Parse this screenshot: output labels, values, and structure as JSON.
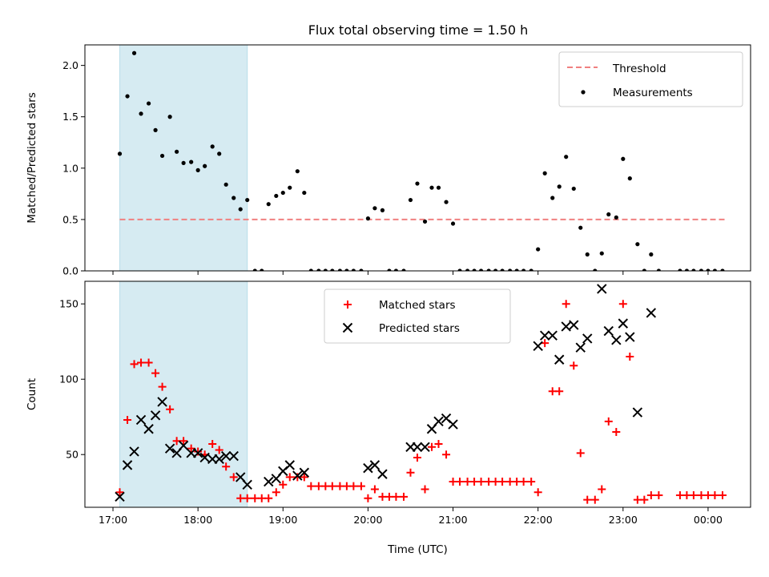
{
  "figure": {
    "title": "Flux total observing time = 1.50 h",
    "colors": {
      "threshold": "#f08080",
      "highlight": "#add8e6",
      "matched": "#ff0000",
      "predicted": "#000000",
      "measurement": "#000000"
    }
  },
  "chart_data": [
    {
      "type": "scatter",
      "title": "Flux total observing time = 1.50 h",
      "xlabel": "",
      "ylabel": "Matched/Predicted stars",
      "x_unit": "hours since 17:00 UTC",
      "xlim": [
        -0.33,
        7.5
      ],
      "ylim": [
        0,
        2.2
      ],
      "yticks": [
        0.0,
        0.5,
        1.0,
        1.5,
        2.0
      ],
      "ytick_labels": [
        "0.0",
        "0.5",
        "1.0",
        "1.5",
        "2.0"
      ],
      "highlight_span": [
        0.08,
        1.58
      ],
      "threshold": {
        "value": 0.5,
        "x_range": [
          0.08,
          7.2
        ],
        "label": "Threshold"
      },
      "legend": {
        "position": "upper right",
        "entries": [
          "Threshold",
          "Measurements"
        ]
      },
      "series": [
        {
          "name": "Measurements",
          "points": [
            [
              0.08,
              1.14
            ],
            [
              0.17,
              1.7
            ],
            [
              0.25,
              2.12
            ],
            [
              0.33,
              1.53
            ],
            [
              0.42,
              1.63
            ],
            [
              0.5,
              1.37
            ],
            [
              0.58,
              1.12
            ],
            [
              0.67,
              1.5
            ],
            [
              0.75,
              1.16
            ],
            [
              0.83,
              1.05
            ],
            [
              0.92,
              1.06
            ],
            [
              1.0,
              0.98
            ],
            [
              1.08,
              1.02
            ],
            [
              1.17,
              1.21
            ],
            [
              1.25,
              1.14
            ],
            [
              1.33,
              0.84
            ],
            [
              1.42,
              0.71
            ],
            [
              1.5,
              0.6
            ],
            [
              1.58,
              0.69
            ],
            [
              1.67,
              0
            ],
            [
              1.75,
              0
            ],
            [
              1.83,
              0.65
            ],
            [
              1.92,
              0.73
            ],
            [
              2.0,
              0.76
            ],
            [
              2.08,
              0.81
            ],
            [
              2.17,
              0.97
            ],
            [
              2.25,
              0.76
            ],
            [
              2.33,
              0
            ],
            [
              2.42,
              0
            ],
            [
              2.5,
              0
            ],
            [
              2.58,
              0
            ],
            [
              2.67,
              0
            ],
            [
              2.75,
              0
            ],
            [
              2.83,
              0
            ],
            [
              2.92,
              0
            ],
            [
              3.0,
              0.51
            ],
            [
              3.08,
              0.61
            ],
            [
              3.17,
              0.59
            ],
            [
              3.25,
              0
            ],
            [
              3.33,
              0
            ],
            [
              3.42,
              0
            ],
            [
              3.5,
              0.69
            ],
            [
              3.58,
              0.85
            ],
            [
              3.67,
              0.48
            ],
            [
              3.75,
              0.81
            ],
            [
              3.83,
              0.81
            ],
            [
              3.92,
              0.67
            ],
            [
              4.0,
              0.46
            ],
            [
              4.08,
              0
            ],
            [
              4.17,
              0
            ],
            [
              4.25,
              0
            ],
            [
              4.33,
              0
            ],
            [
              4.42,
              0
            ],
            [
              4.5,
              0
            ],
            [
              4.58,
              0
            ],
            [
              4.67,
              0
            ],
            [
              4.75,
              0
            ],
            [
              4.83,
              0
            ],
            [
              4.92,
              0
            ],
            [
              5.0,
              0.21
            ],
            [
              5.08,
              0.95
            ],
            [
              5.17,
              0.71
            ],
            [
              5.25,
              0.82
            ],
            [
              5.33,
              1.11
            ],
            [
              5.42,
              0.8
            ],
            [
              5.5,
              0.42
            ],
            [
              5.58,
              0.16
            ],
            [
              5.67,
              0
            ],
            [
              5.75,
              0.17
            ],
            [
              5.83,
              0.55
            ],
            [
              5.92,
              0.52
            ],
            [
              6.0,
              1.09
            ],
            [
              6.08,
              0.9
            ],
            [
              6.17,
              0.26
            ],
            [
              6.25,
              0
            ],
            [
              6.33,
              0.16
            ],
            [
              6.42,
              0
            ],
            [
              6.67,
              0
            ],
            [
              6.75,
              0
            ],
            [
              6.83,
              0
            ],
            [
              6.92,
              0
            ],
            [
              7.0,
              0
            ],
            [
              7.08,
              0
            ],
            [
              7.17,
              0
            ]
          ]
        }
      ]
    },
    {
      "type": "scatter",
      "title": "",
      "xlabel": "Time (UTC)",
      "ylabel": "Count",
      "x_unit": "hours since 17:00 UTC",
      "xlim": [
        -0.33,
        7.5
      ],
      "ylim": [
        15,
        165
      ],
      "yticks": [
        50,
        100,
        150
      ],
      "ytick_labels": [
        "50",
        "100",
        "150"
      ],
      "xticks": [
        0,
        1,
        2,
        3,
        4,
        5,
        6,
        7
      ],
      "xtick_labels": [
        "17:00",
        "18:00",
        "19:00",
        "20:00",
        "21:00",
        "22:00",
        "23:00",
        "00:00"
      ],
      "highlight_span": [
        0.08,
        1.58
      ],
      "legend": {
        "position": "upper center",
        "entries": [
          "Matched stars",
          "Predicted stars"
        ]
      },
      "series": [
        {
          "name": "Matched stars",
          "marker": "+",
          "points": [
            [
              0.08,
              25
            ],
            [
              0.17,
              73
            ],
            [
              0.25,
              110
            ],
            [
              0.33,
              111
            ],
            [
              0.42,
              111
            ],
            [
              0.5,
              104
            ],
            [
              0.58,
              95
            ],
            [
              0.67,
              80
            ],
            [
              0.75,
              59
            ],
            [
              0.83,
              59
            ],
            [
              0.92,
              54
            ],
            [
              1.0,
              52
            ],
            [
              1.08,
              50
            ],
            [
              1.17,
              57
            ],
            [
              1.25,
              53
            ],
            [
              1.33,
              42
            ],
            [
              1.42,
              35
            ],
            [
              1.5,
              21
            ],
            [
              1.58,
              21
            ],
            [
              1.67,
              21
            ],
            [
              1.75,
              21
            ],
            [
              1.83,
              21
            ],
            [
              1.92,
              25
            ],
            [
              2.0,
              30
            ],
            [
              2.08,
              35
            ],
            [
              2.17,
              35
            ],
            [
              2.25,
              35
            ],
            [
              2.33,
              29
            ],
            [
              2.42,
              29
            ],
            [
              2.5,
              29
            ],
            [
              2.58,
              29
            ],
            [
              2.67,
              29
            ],
            [
              2.75,
              29
            ],
            [
              2.83,
              29
            ],
            [
              2.92,
              29
            ],
            [
              3.0,
              21
            ],
            [
              3.08,
              27
            ],
            [
              3.17,
              22
            ],
            [
              3.25,
              22
            ],
            [
              3.33,
              22
            ],
            [
              3.42,
              22
            ],
            [
              3.5,
              38
            ],
            [
              3.58,
              48
            ],
            [
              3.67,
              27
            ],
            [
              3.75,
              55
            ],
            [
              3.83,
              57
            ],
            [
              3.92,
              50
            ],
            [
              4.0,
              32
            ],
            [
              4.08,
              32
            ],
            [
              4.17,
              32
            ],
            [
              4.25,
              32
            ],
            [
              4.33,
              32
            ],
            [
              4.42,
              32
            ],
            [
              4.5,
              32
            ],
            [
              4.58,
              32
            ],
            [
              4.67,
              32
            ],
            [
              4.75,
              32
            ],
            [
              4.83,
              32
            ],
            [
              4.92,
              32
            ],
            [
              5.0,
              25
            ],
            [
              5.08,
              124
            ],
            [
              5.17,
              92
            ],
            [
              5.25,
              92
            ],
            [
              5.33,
              150
            ],
            [
              5.42,
              109
            ],
            [
              5.5,
              51
            ],
            [
              5.58,
              20
            ],
            [
              5.67,
              20
            ],
            [
              5.75,
              27
            ],
            [
              5.83,
              72
            ],
            [
              5.92,
              65
            ],
            [
              6.0,
              150
            ],
            [
              6.08,
              115
            ],
            [
              6.17,
              20
            ],
            [
              6.25,
              20
            ],
            [
              6.33,
              23
            ],
            [
              6.42,
              23
            ],
            [
              6.67,
              23
            ],
            [
              6.75,
              23
            ],
            [
              6.83,
              23
            ],
            [
              6.92,
              23
            ],
            [
              7.0,
              23
            ],
            [
              7.08,
              23
            ],
            [
              7.17,
              23
            ]
          ]
        },
        {
          "name": "Predicted stars",
          "marker": "x",
          "points": [
            [
              0.08,
              22
            ],
            [
              0.17,
              43
            ],
            [
              0.25,
              52
            ],
            [
              0.33,
              73
            ],
            [
              0.42,
              67
            ],
            [
              0.5,
              76
            ],
            [
              0.58,
              85
            ],
            [
              0.67,
              54
            ],
            [
              0.75,
              51
            ],
            [
              0.83,
              56
            ],
            [
              0.92,
              51
            ],
            [
              1.0,
              51
            ],
            [
              1.08,
              48
            ],
            [
              1.17,
              47
            ],
            [
              1.25,
              47
            ],
            [
              1.33,
              49
            ],
            [
              1.42,
              49
            ],
            [
              1.5,
              35
            ],
            [
              1.58,
              30
            ],
            [
              1.83,
              32
            ],
            [
              1.92,
              34
            ],
            [
              2.0,
              39
            ],
            [
              2.08,
              43
            ],
            [
              2.17,
              36
            ],
            [
              2.25,
              38
            ],
            [
              3.0,
              41
            ],
            [
              3.08,
              43
            ],
            [
              3.17,
              37
            ],
            [
              3.5,
              55
            ],
            [
              3.58,
              55
            ],
            [
              3.67,
              55
            ],
            [
              3.75,
              67
            ],
            [
              3.83,
              72
            ],
            [
              3.92,
              74
            ],
            [
              4.0,
              70
            ],
            [
              5.0,
              122
            ],
            [
              5.08,
              129
            ],
            [
              5.17,
              129
            ],
            [
              5.25,
              113
            ],
            [
              5.33,
              135
            ],
            [
              5.42,
              136
            ],
            [
              5.5,
              121
            ],
            [
              5.58,
              127
            ],
            [
              5.75,
              160
            ],
            [
              5.83,
              132
            ],
            [
              5.92,
              126
            ],
            [
              6.0,
              137
            ],
            [
              6.08,
              128
            ],
            [
              6.17,
              78
            ],
            [
              6.33,
              144
            ]
          ]
        }
      ]
    }
  ]
}
